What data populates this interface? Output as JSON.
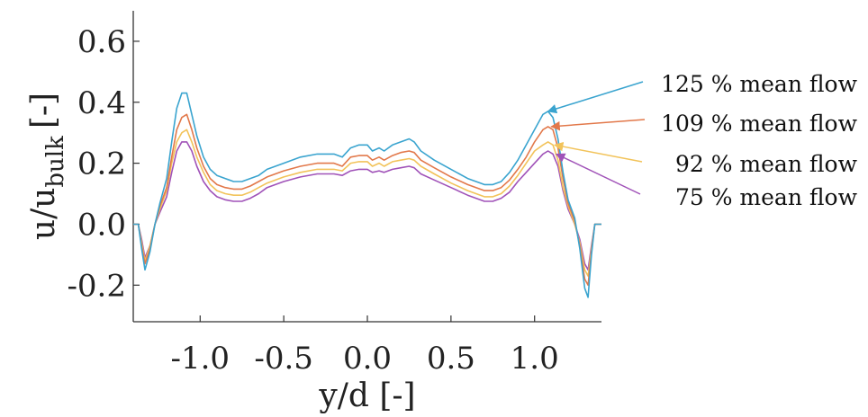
{
  "chart_data": {
    "type": "line",
    "title": "",
    "xlabel": "y/d [-]",
    "ylabel_main": "u/u",
    "ylabel_sub": "bulk",
    "ylabel_suffix": "[-]",
    "xlim": [
      -1.4,
      1.4
    ],
    "ylim": [
      -0.32,
      0.7
    ],
    "xticks": [
      -1.0,
      -0.5,
      0.0,
      0.5,
      1.0
    ],
    "xtick_labels": [
      "-1.0",
      "-0.5",
      "0.0",
      "0.5",
      "1.0"
    ],
    "yticks": [
      -0.2,
      0.0,
      0.2,
      0.4,
      0.6
    ],
    "ytick_labels": [
      "-0.2",
      "0.0",
      "0.2",
      "0.4",
      "0.6"
    ],
    "grid": false,
    "legend": "annotations at right with arrows",
    "series": [
      {
        "name": "125 % mean flow",
        "color": "#3aa4cf",
        "x": [
          -1.4,
          -1.37,
          -1.35,
          -1.33,
          -1.3,
          -1.27,
          -1.24,
          -1.2,
          -1.17,
          -1.14,
          -1.11,
          -1.08,
          -1.05,
          -1.02,
          -0.98,
          -0.94,
          -0.9,
          -0.85,
          -0.8,
          -0.75,
          -0.7,
          -0.65,
          -0.6,
          -0.5,
          -0.4,
          -0.3,
          -0.2,
          -0.15,
          -0.1,
          -0.05,
          0.0,
          0.03,
          0.07,
          0.1,
          0.15,
          0.2,
          0.25,
          0.28,
          0.32,
          0.4,
          0.5,
          0.6,
          0.7,
          0.75,
          0.8,
          0.85,
          0.9,
          0.95,
          1.0,
          1.05,
          1.08,
          1.11,
          1.14,
          1.17,
          1.2,
          1.24,
          1.27,
          1.3,
          1.32,
          1.34,
          1.36,
          1.38,
          1.4
        ],
        "y": [
          0.0,
          0.0,
          -0.08,
          -0.15,
          -0.09,
          0.0,
          0.07,
          0.15,
          0.27,
          0.38,
          0.43,
          0.43,
          0.36,
          0.29,
          0.22,
          0.18,
          0.16,
          0.15,
          0.14,
          0.14,
          0.15,
          0.16,
          0.18,
          0.2,
          0.22,
          0.23,
          0.23,
          0.22,
          0.25,
          0.26,
          0.26,
          0.24,
          0.25,
          0.24,
          0.26,
          0.27,
          0.28,
          0.27,
          0.24,
          0.21,
          0.18,
          0.15,
          0.13,
          0.13,
          0.14,
          0.17,
          0.21,
          0.26,
          0.31,
          0.36,
          0.37,
          0.35,
          0.28,
          0.17,
          0.08,
          0.02,
          -0.08,
          -0.21,
          -0.24,
          -0.1,
          0.0,
          0.0,
          0.0
        ]
      },
      {
        "name": "109 % mean flow",
        "color": "#e2784a",
        "x": [
          -1.4,
          -1.37,
          -1.35,
          -1.33,
          -1.3,
          -1.27,
          -1.24,
          -1.2,
          -1.17,
          -1.14,
          -1.11,
          -1.08,
          -1.05,
          -1.02,
          -0.98,
          -0.94,
          -0.9,
          -0.85,
          -0.8,
          -0.75,
          -0.7,
          -0.65,
          -0.6,
          -0.5,
          -0.4,
          -0.3,
          -0.2,
          -0.15,
          -0.1,
          -0.05,
          0.0,
          0.03,
          0.07,
          0.1,
          0.15,
          0.2,
          0.25,
          0.28,
          0.32,
          0.4,
          0.5,
          0.6,
          0.7,
          0.75,
          0.8,
          0.85,
          0.9,
          0.95,
          1.0,
          1.05,
          1.08,
          1.11,
          1.14,
          1.17,
          1.2,
          1.24,
          1.27,
          1.3,
          1.32,
          1.34,
          1.36,
          1.38,
          1.4
        ],
        "y": [
          0.0,
          0.0,
          -0.07,
          -0.13,
          -0.08,
          0.0,
          0.06,
          0.12,
          0.22,
          0.31,
          0.35,
          0.36,
          0.31,
          0.25,
          0.19,
          0.15,
          0.13,
          0.12,
          0.115,
          0.115,
          0.125,
          0.14,
          0.155,
          0.175,
          0.19,
          0.2,
          0.2,
          0.19,
          0.22,
          0.225,
          0.225,
          0.21,
          0.22,
          0.21,
          0.225,
          0.235,
          0.24,
          0.235,
          0.21,
          0.185,
          0.155,
          0.13,
          0.11,
          0.11,
          0.12,
          0.145,
          0.18,
          0.22,
          0.27,
          0.31,
          0.32,
          0.31,
          0.25,
          0.15,
          0.07,
          0.01,
          -0.07,
          -0.18,
          -0.2,
          -0.09,
          0.0,
          0.0,
          0.0
        ]
      },
      {
        "name": "92 % mean flow",
        "color": "#f2c35a",
        "x": [
          -1.4,
          -1.37,
          -1.35,
          -1.33,
          -1.3,
          -1.27,
          -1.24,
          -1.2,
          -1.17,
          -1.14,
          -1.11,
          -1.08,
          -1.05,
          -1.02,
          -0.98,
          -0.94,
          -0.9,
          -0.85,
          -0.8,
          -0.75,
          -0.7,
          -0.65,
          -0.6,
          -0.5,
          -0.4,
          -0.3,
          -0.2,
          -0.15,
          -0.1,
          -0.05,
          0.0,
          0.03,
          0.07,
          0.1,
          0.15,
          0.2,
          0.25,
          0.28,
          0.32,
          0.4,
          0.5,
          0.6,
          0.7,
          0.75,
          0.8,
          0.85,
          0.9,
          0.95,
          1.0,
          1.05,
          1.08,
          1.11,
          1.14,
          1.17,
          1.2,
          1.24,
          1.27,
          1.3,
          1.32,
          1.34,
          1.36,
          1.38,
          1.4
        ],
        "y": [
          0.0,
          0.0,
          -0.06,
          -0.12,
          -0.07,
          0.0,
          0.05,
          0.11,
          0.2,
          0.27,
          0.3,
          0.31,
          0.27,
          0.22,
          0.17,
          0.13,
          0.11,
          0.1,
          0.095,
          0.095,
          0.105,
          0.12,
          0.135,
          0.155,
          0.17,
          0.18,
          0.18,
          0.175,
          0.2,
          0.205,
          0.205,
          0.19,
          0.2,
          0.19,
          0.205,
          0.21,
          0.215,
          0.21,
          0.19,
          0.165,
          0.135,
          0.11,
          0.09,
          0.09,
          0.1,
          0.125,
          0.16,
          0.2,
          0.24,
          0.26,
          0.27,
          0.26,
          0.21,
          0.12,
          0.06,
          0.0,
          -0.06,
          -0.15,
          -0.17,
          -0.08,
          0.0,
          0.0,
          0.0
        ]
      },
      {
        "name": "75 % mean flow",
        "color": "#a052b8",
        "x": [
          -1.4,
          -1.37,
          -1.35,
          -1.33,
          -1.3,
          -1.27,
          -1.24,
          -1.2,
          -1.17,
          -1.14,
          -1.11,
          -1.08,
          -1.05,
          -1.02,
          -0.98,
          -0.94,
          -0.9,
          -0.85,
          -0.8,
          -0.75,
          -0.7,
          -0.65,
          -0.6,
          -0.5,
          -0.4,
          -0.3,
          -0.2,
          -0.15,
          -0.1,
          -0.05,
          0.0,
          0.03,
          0.07,
          0.1,
          0.15,
          0.2,
          0.25,
          0.28,
          0.32,
          0.4,
          0.5,
          0.6,
          0.7,
          0.75,
          0.8,
          0.85,
          0.9,
          0.95,
          1.0,
          1.05,
          1.08,
          1.11,
          1.14,
          1.17,
          1.2,
          1.24,
          1.27,
          1.3,
          1.32,
          1.34,
          1.36,
          1.38,
          1.4
        ],
        "y": [
          0.0,
          0.0,
          -0.05,
          -0.11,
          -0.07,
          0.0,
          0.04,
          0.09,
          0.17,
          0.24,
          0.27,
          0.27,
          0.24,
          0.19,
          0.14,
          0.11,
          0.09,
          0.08,
          0.075,
          0.075,
          0.085,
          0.1,
          0.12,
          0.14,
          0.155,
          0.165,
          0.165,
          0.16,
          0.175,
          0.18,
          0.18,
          0.17,
          0.175,
          0.17,
          0.18,
          0.185,
          0.19,
          0.185,
          0.165,
          0.145,
          0.12,
          0.095,
          0.075,
          0.075,
          0.085,
          0.105,
          0.14,
          0.17,
          0.2,
          0.23,
          0.24,
          0.23,
          0.19,
          0.11,
          0.05,
          0.0,
          -0.05,
          -0.13,
          -0.15,
          -0.07,
          0.0,
          0.0,
          0.0
        ]
      }
    ]
  }
}
